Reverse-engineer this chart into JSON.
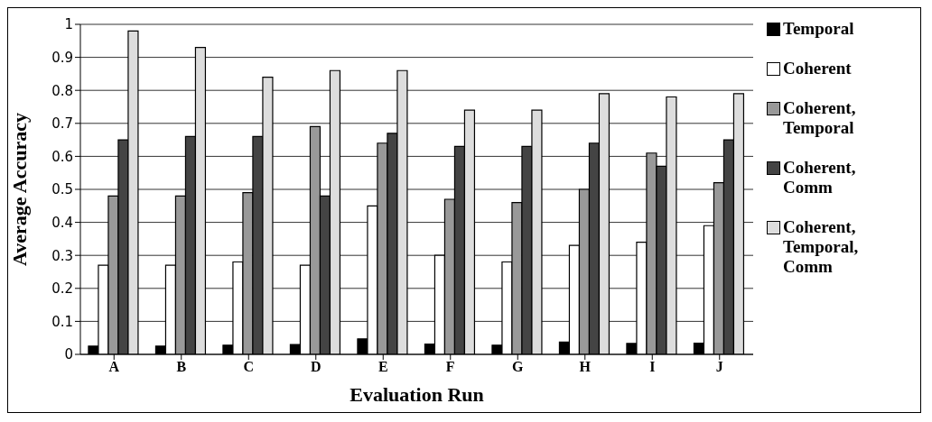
{
  "chart_data": {
    "type": "bar",
    "xlabel": "Evaluation Run",
    "ylabel": "Average Accuracy",
    "categories": [
      "A",
      "B",
      "C",
      "D",
      "E",
      "F",
      "G",
      "H",
      "I",
      "J"
    ],
    "series": [
      {
        "name": "Temporal",
        "color": "#000000",
        "values": [
          0.025,
          0.025,
          0.028,
          0.03,
          0.047,
          0.031,
          0.028,
          0.037,
          0.033,
          0.034
        ]
      },
      {
        "name": "Coherent",
        "color": "#ffffff",
        "values": [
          0.27,
          0.27,
          0.28,
          0.27,
          0.45,
          0.3,
          0.28,
          0.33,
          0.34,
          0.39
        ]
      },
      {
        "name": "Coherent, Temporal",
        "color": "#999999",
        "values": [
          0.48,
          0.48,
          0.49,
          0.69,
          0.64,
          0.47,
          0.46,
          0.5,
          0.61,
          0.52
        ]
      },
      {
        "name": "Coherent, Comm",
        "color": "#444444",
        "values": [
          0.65,
          0.66,
          0.66,
          0.48,
          0.67,
          0.63,
          0.63,
          0.64,
          0.57,
          0.65
        ]
      },
      {
        "name": "Coherent, Temporal, Comm",
        "color": "#dddddd",
        "values": [
          0.98,
          0.93,
          0.84,
          0.86,
          0.86,
          0.74,
          0.74,
          0.79,
          0.78,
          0.79
        ]
      }
    ],
    "ylim": [
      0,
      1
    ],
    "yticks": [
      0,
      0.1,
      0.2,
      0.3,
      0.4,
      0.5,
      0.6,
      0.7,
      0.8,
      0.9,
      1
    ],
    "grid": "y",
    "legend": "right"
  }
}
